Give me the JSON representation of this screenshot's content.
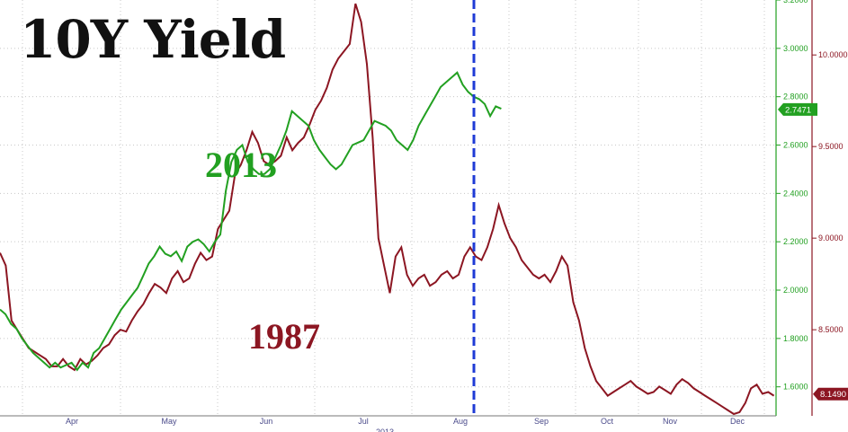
{
  "title": "10Y Yield",
  "chart_data": {
    "type": "line",
    "title": "10Y Yield",
    "x_labels": [
      "Apr",
      "May",
      "Jun",
      "Jul",
      "Aug",
      "Sep",
      "Oct",
      "Nov",
      "Dec"
    ],
    "x_year_label": "2013",
    "grid": true,
    "marker": {
      "type": "vertical-dashed-line",
      "position_month": "Aug",
      "color": "#1f3bd6"
    },
    "axes": {
      "left_inner": {
        "series": "2013",
        "range": [
          1.48,
          3.2
        ],
        "ticks": [
          "1.6000",
          "1.8000",
          "2.0000",
          "2.2000",
          "2.4000",
          "2.6000",
          "2.8000",
          "3.0000",
          "3.2000"
        ],
        "color": "#22a021"
      },
      "right_outer": {
        "series": "1987",
        "range": [
          8.03,
          10.3
        ],
        "ticks": [
          "8.5000",
          "9.0000",
          "9.5000",
          "10.0000"
        ],
        "color": "#8c1622"
      }
    },
    "series": [
      {
        "name": "2013",
        "axis": "left_inner",
        "color": "#22a021",
        "last_value": "2.7471",
        "x": [
          0,
          0.25,
          0.5,
          0.75,
          1,
          1.25,
          1.5,
          1.75,
          2,
          2.25,
          2.5,
          2.75,
          3,
          3.25,
          3.5,
          3.75,
          4,
          4.25,
          4.5,
          4.75,
          5,
          5.25,
          5.5,
          5.75,
          6,
          6.25,
          6.5,
          6.75,
          7,
          7.25,
          7.5,
          7.75,
          8,
          8.25,
          8.5,
          8.75,
          9,
          9.25,
          9.5,
          9.75,
          10,
          10.25,
          10.5,
          10.75,
          11,
          11.25,
          11.5,
          11.75,
          12,
          12.25,
          12.5,
          12.75,
          13,
          13.25,
          13.5,
          13.75,
          14,
          14.25,
          14.5,
          14.75,
          15,
          15.25,
          15.5,
          15.75,
          16,
          16.25,
          16.5,
          16.75,
          17,
          17.25,
          17.5,
          17.75,
          18,
          18.25,
          18.5,
          18.75,
          19,
          19.25,
          19.5,
          19.75,
          20,
          20.25,
          20.5,
          20.75,
          21,
          21.25,
          21.5,
          21.75,
          22,
          22.25,
          22.5,
          22.75
        ],
        "values": [
          1.92,
          1.9,
          1.86,
          1.84,
          1.8,
          1.77,
          1.74,
          1.72,
          1.7,
          1.68,
          1.7,
          1.68,
          1.69,
          1.7,
          1.67,
          1.7,
          1.68,
          1.74,
          1.76,
          1.8,
          1.84,
          1.88,
          1.92,
          1.95,
          1.98,
          2.01,
          2.06,
          2.11,
          2.14,
          2.18,
          2.15,
          2.14,
          2.16,
          2.12,
          2.18,
          2.2,
          2.21,
          2.19,
          2.16,
          2.2,
          2.23,
          2.41,
          2.53,
          2.58,
          2.6,
          2.53,
          2.5,
          2.48,
          2.48,
          2.5,
          2.55,
          2.6,
          2.66,
          2.74,
          2.72,
          2.7,
          2.68,
          2.62,
          2.58,
          2.55,
          2.52,
          2.5,
          2.52,
          2.56,
          2.6,
          2.61,
          2.62,
          2.66,
          2.7,
          2.69,
          2.68,
          2.66,
          2.62,
          2.6,
          2.58,
          2.62,
          2.68,
          2.72,
          2.76,
          2.8,
          2.84,
          2.86,
          2.88,
          2.9,
          2.85,
          2.82,
          2.8,
          2.79,
          2.77,
          2.72,
          2.76,
          2.75
        ]
      },
      {
        "name": "1987",
        "axis": "right_outer",
        "color": "#8c1622",
        "last_value": "8.1490",
        "x": [
          0,
          0.25,
          0.5,
          0.75,
          1,
          1.25,
          1.5,
          1.75,
          2,
          2.25,
          2.5,
          2.75,
          3,
          3.25,
          3.5,
          3.75,
          4,
          4.25,
          4.5,
          4.75,
          5,
          5.25,
          5.5,
          5.75,
          6,
          6.25,
          6.5,
          6.75,
          7,
          7.25,
          7.5,
          7.75,
          8,
          8.25,
          8.5,
          8.75,
          9,
          9.25,
          9.5,
          9.75,
          10,
          10.25,
          10.5,
          10.75,
          11,
          11.25,
          11.5,
          11.75,
          12,
          12.25,
          12.5,
          12.75,
          13,
          13.25,
          13.5,
          13.75,
          14,
          14.25,
          14.5,
          14.75,
          15,
          15.25,
          15.5,
          15.75,
          16,
          16.25,
          16.5,
          16.75,
          17,
          17.25,
          17.5,
          17.75,
          18,
          18.25,
          18.5,
          18.75,
          19,
          19.25,
          19.5,
          19.75,
          20,
          20.25,
          20.5,
          20.75,
          21,
          21.25,
          21.5,
          21.75,
          22,
          22.25,
          22.5,
          22.75,
          23,
          23.25,
          23.5,
          23.75,
          24,
          24.25,
          24.5,
          24.75,
          25,
          25.25,
          25.5,
          25.75,
          26,
          26.25,
          26.5,
          26.75,
          27,
          27.25,
          27.5,
          27.75,
          28,
          28.25,
          28.5,
          28.75,
          29,
          29.25,
          29.5,
          29.75,
          30,
          30.25,
          30.5,
          30.75,
          31,
          31.25,
          31.5,
          31.75,
          32,
          32.25,
          32.5,
          32.75,
          33,
          33.25,
          33.5,
          33.75
        ],
        "values": [
          8.92,
          8.85,
          8.55,
          8.5,
          8.45,
          8.4,
          8.38,
          8.36,
          8.34,
          8.3,
          8.3,
          8.34,
          8.3,
          8.28,
          8.34,
          8.31,
          8.33,
          8.36,
          8.4,
          8.42,
          8.47,
          8.5,
          8.49,
          8.55,
          8.6,
          8.64,
          8.7,
          8.75,
          8.73,
          8.7,
          8.78,
          8.82,
          8.76,
          8.78,
          8.86,
          8.92,
          8.88,
          8.9,
          9.05,
          9.1,
          9.15,
          9.35,
          9.4,
          9.48,
          9.58,
          9.52,
          9.42,
          9.4,
          9.42,
          9.45,
          9.55,
          9.48,
          9.52,
          9.55,
          9.62,
          9.7,
          9.75,
          9.82,
          9.92,
          9.98,
          10.02,
          10.06,
          10.28,
          10.18,
          9.95,
          9.55,
          9.0,
          8.85,
          8.7,
          8.9,
          8.95,
          8.8,
          8.74,
          8.78,
          8.8,
          8.74,
          8.76,
          8.8,
          8.82,
          8.78,
          8.8,
          8.9,
          8.95,
          8.9,
          8.88,
          8.95,
          9.05,
          9.18,
          9.08,
          9.0,
          8.95,
          8.88,
          8.84,
          8.8,
          8.78,
          8.8,
          8.76,
          8.82,
          8.9,
          8.85,
          8.65,
          8.55,
          8.4,
          8.3,
          8.22,
          8.18,
          8.14,
          8.16,
          8.18,
          8.2,
          8.22,
          8.19,
          8.17,
          8.15,
          8.16,
          8.19,
          8.17,
          8.15,
          8.2,
          8.23,
          8.21,
          8.18,
          8.16,
          8.14,
          8.12,
          8.1,
          8.08,
          8.06,
          8.04,
          8.05,
          8.1,
          8.18,
          8.2,
          8.15,
          8.16,
          8.14
        ]
      }
    ]
  }
}
